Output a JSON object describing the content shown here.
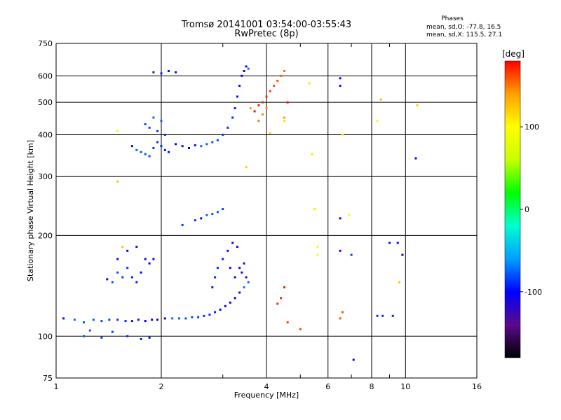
{
  "chart_data": {
    "type": "scatter",
    "title": "Tromsø 20141001 03:54:00-03:55:43",
    "subtitle": "RwPretec (8p)",
    "xlabel": "Frequency [MHz]",
    "ylabel": "Stationary phase Virtual Height [km]",
    "x_scale": "log",
    "y_scale": "log",
    "xlim": [
      1,
      16
    ],
    "ylim": [
      75,
      750
    ],
    "x_ticks": [
      "1",
      "2",
      "4",
      "6",
      "8",
      "10",
      "16"
    ],
    "x_tick_values": [
      1,
      2,
      4,
      6,
      8,
      10,
      16
    ],
    "x_minor_ticks": [
      3,
      5,
      7,
      9
    ],
    "y_ticks": [
      "75",
      "100",
      "200",
      "300",
      "400",
      "500",
      "600",
      "750"
    ],
    "y_tick_values": [
      75,
      100,
      200,
      300,
      400,
      500,
      600,
      750
    ],
    "grid": true,
    "phase_header": "Phases",
    "phase_stats": [
      "mean, sd,O: -77.8, 16.5",
      "mean, sd,X: 115.5, 27.1"
    ],
    "colorbar": {
      "label": "[deg]",
      "range": [
        -180,
        180
      ],
      "ticks": [
        "100",
        "0",
        "-100"
      ],
      "tick_values": [
        100,
        0,
        -100
      ],
      "colors": [
        "#000000",
        "#5a0a8c",
        "#0000ff",
        "#00a0ff",
        "#00ffd0",
        "#00ff00",
        "#c8ff00",
        "#ffff00",
        "#ffa000",
        "#ff0000"
      ]
    },
    "series": [
      {
        "points": [
          [
            1.05,
            113
          ],
          [
            1.13,
            112
          ],
          [
            1.2,
            110
          ],
          [
            1.28,
            112
          ],
          [
            1.35,
            111
          ],
          [
            1.42,
            112
          ],
          [
            1.5,
            112
          ],
          [
            1.58,
            111
          ],
          [
            1.65,
            111
          ],
          [
            1.72,
            112
          ],
          [
            1.8,
            111
          ],
          [
            1.88,
            112
          ],
          [
            1.95,
            112
          ],
          [
            2.05,
            113
          ],
          [
            2.15,
            113
          ],
          [
            2.25,
            113
          ],
          [
            2.35,
            113
          ],
          [
            2.45,
            114
          ],
          [
            2.55,
            114
          ],
          [
            2.65,
            115
          ],
          [
            2.75,
            116
          ],
          [
            2.85,
            118
          ],
          [
            2.95,
            120
          ],
          [
            3.05,
            123
          ],
          [
            3.15,
            126
          ],
          [
            3.25,
            130
          ],
          [
            3.35,
            135
          ],
          [
            3.45,
            140
          ],
          [
            3.55,
            145
          ]
        ],
        "phase": -90
      },
      {
        "points": [
          [
            1.4,
            148
          ],
          [
            1.45,
            145
          ],
          [
            1.5,
            155
          ],
          [
            1.55,
            150
          ],
          [
            1.6,
            160
          ],
          [
            1.65,
            150
          ],
          [
            1.7,
            145
          ],
          [
            1.75,
            155
          ],
          [
            1.8,
            170
          ],
          [
            1.85,
            165
          ],
          [
            1.9,
            170
          ],
          [
            1.5,
            170
          ],
          [
            1.6,
            180
          ],
          [
            1.7,
            185
          ],
          [
            1.2,
            100
          ],
          [
            1.25,
            104
          ],
          [
            1.35,
            99
          ],
          [
            1.45,
            103
          ],
          [
            1.6,
            100
          ],
          [
            1.75,
            98
          ],
          [
            1.85,
            99
          ]
        ],
        "phase": -95
      },
      {
        "points": [
          [
            2.6,
            225
          ],
          [
            2.7,
            230
          ],
          [
            2.8,
            232
          ],
          [
            2.9,
            235
          ],
          [
            3.0,
            240
          ],
          [
            2.3,
            215
          ],
          [
            2.5,
            222
          ]
        ],
        "phase": -90
      },
      {
        "points": [
          [
            2.8,
            140
          ],
          [
            2.85,
            150
          ],
          [
            2.9,
            160
          ],
          [
            3.0,
            170
          ],
          [
            3.1,
            180
          ],
          [
            3.2,
            190
          ],
          [
            3.3,
            185
          ],
          [
            3.15,
            160
          ],
          [
            3.25,
            150
          ],
          [
            3.35,
            160
          ],
          [
            3.4,
            155
          ],
          [
            3.45,
            165
          ],
          [
            3.5,
            150
          ]
        ],
        "phase": -105
      },
      {
        "points": [
          [
            1.65,
            370
          ],
          [
            1.7,
            360
          ],
          [
            1.75,
            355
          ],
          [
            1.8,
            350
          ],
          [
            1.85,
            345
          ],
          [
            1.9,
            365
          ],
          [
            1.95,
            380
          ],
          [
            2.0,
            370
          ],
          [
            2.05,
            360
          ],
          [
            2.1,
            355
          ],
          [
            2.2,
            375
          ],
          [
            2.3,
            370
          ],
          [
            2.4,
            365
          ],
          [
            2.5,
            372
          ],
          [
            2.6,
            370
          ],
          [
            2.7,
            375
          ],
          [
            2.8,
            380
          ],
          [
            2.9,
            385
          ],
          [
            3.0,
            400
          ],
          [
            3.1,
            420
          ],
          [
            3.2,
            450
          ],
          [
            3.25,
            480
          ],
          [
            3.3,
            520
          ],
          [
            3.35,
            560
          ],
          [
            3.4,
            600
          ],
          [
            3.45,
            620
          ],
          [
            3.5,
            640
          ],
          [
            3.55,
            630
          ],
          [
            1.9,
            450
          ],
          [
            2.0,
            440
          ],
          [
            1.8,
            430
          ],
          [
            1.85,
            420
          ],
          [
            1.95,
            410
          ],
          [
            2.05,
            400
          ]
        ],
        "phase": -90
      },
      {
        "points": [
          [
            3.6,
            480
          ],
          [
            3.7,
            470
          ],
          [
            3.8,
            490
          ],
          [
            3.9,
            500
          ],
          [
            4.0,
            520
          ],
          [
            4.1,
            540
          ],
          [
            4.2,
            560
          ],
          [
            4.3,
            580
          ],
          [
            4.4,
            600
          ],
          [
            4.5,
            620
          ],
          [
            3.8,
            440
          ],
          [
            3.9,
            460
          ],
          [
            4.0,
            480
          ],
          [
            4.5,
            450
          ],
          [
            4.6,
            500
          ],
          [
            4.5,
            140
          ],
          [
            4.4,
            130
          ],
          [
            4.3,
            125
          ],
          [
            4.6,
            110
          ],
          [
            5.0,
            105
          ],
          [
            6.6,
            118
          ],
          [
            6.5,
            113
          ]
        ],
        "phase": 160
      },
      {
        "points": [
          [
            1.9,
            615
          ],
          [
            2.0,
            610
          ],
          [
            2.1,
            620
          ],
          [
            2.2,
            615
          ]
        ],
        "phase": -110
      },
      {
        "points": [
          [
            6.5,
            180
          ],
          [
            7.0,
            175
          ],
          [
            8.3,
            115
          ],
          [
            8.6,
            115
          ],
          [
            9.2,
            115
          ],
          [
            9.0,
            190
          ],
          [
            9.5,
            190
          ],
          [
            9.8,
            175
          ],
          [
            10.7,
            340
          ],
          [
            7.1,
            85
          ],
          [
            6.5,
            225
          ],
          [
            6.5,
            560
          ],
          [
            6.5,
            590
          ]
        ],
        "phase": -100
      },
      {
        "points": [
          [
            1.5,
            410
          ],
          [
            1.5,
            290
          ],
          [
            1.55,
            185
          ],
          [
            3.5,
            320
          ],
          [
            4.1,
            405
          ],
          [
            4.5,
            440
          ],
          [
            5.3,
            570
          ],
          [
            5.4,
            350
          ],
          [
            5.5,
            240
          ],
          [
            5.6,
            185
          ],
          [
            5.6,
            175
          ],
          [
            6.6,
            400
          ],
          [
            6.9,
            230
          ],
          [
            8.3,
            440
          ],
          [
            8.5,
            510
          ],
          [
            9.6,
            145
          ],
          [
            10.8,
            490
          ]
        ],
        "phase": 110
      }
    ]
  }
}
